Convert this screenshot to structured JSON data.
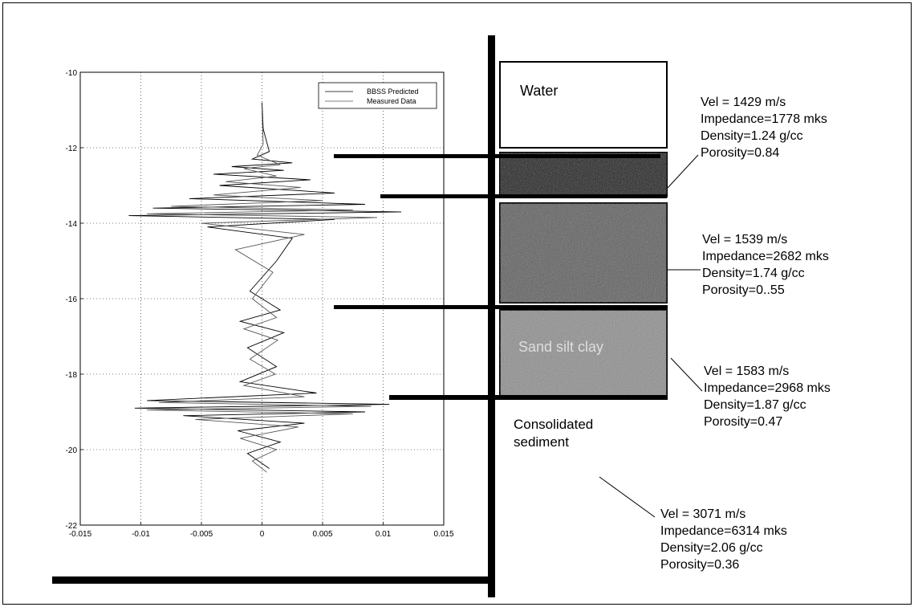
{
  "chart_data": {
    "type": "line",
    "title": "",
    "xlabel": "",
    "ylabel": "",
    "xlim": [
      -0.015,
      0.015
    ],
    "ylim": [
      -22,
      -10
    ],
    "x_ticks": [
      "-0.015",
      "-0.01",
      "-0.005",
      "0",
      "0.005",
      "0.01",
      "0.015"
    ],
    "y_ticks": [
      "-10",
      "-12",
      "-14",
      "-16",
      "-18",
      "-20",
      "-22"
    ],
    "grid": true,
    "legend_position": "top-right",
    "series": [
      {
        "name": "BBSS Predicted",
        "y": [
          -10.8,
          -11.5,
          -12.1,
          -12.3,
          -12.4,
          -12.5,
          -12.6,
          -12.7,
          -12.85,
          -13.0,
          -13.2,
          -13.35,
          -13.5,
          -13.6,
          -13.7,
          -13.8,
          -13.9,
          -14.1,
          -14.4,
          -15.0,
          -15.8,
          -16.3,
          -16.6,
          -16.9,
          -17.3,
          -17.8,
          -18.2,
          -18.5,
          -18.7,
          -18.8,
          -18.9,
          -19.0,
          -19.1,
          -19.3,
          -19.5,
          -19.8,
          -20.1,
          -20.5
        ],
        "values": [
          0.0,
          0.0001,
          0.0006,
          -0.0008,
          0.0025,
          -0.0025,
          0.0018,
          -0.004,
          0.004,
          -0.0035,
          0.006,
          -0.006,
          0.0085,
          -0.009,
          0.0115,
          -0.011,
          0.006,
          -0.0045,
          0.0025,
          0.0012,
          -0.001,
          0.0015,
          -0.0018,
          0.0018,
          -0.0012,
          0.0012,
          -0.0018,
          0.0045,
          -0.0095,
          0.0105,
          -0.0105,
          0.0085,
          -0.0065,
          0.0035,
          -0.002,
          0.0015,
          -0.0012,
          0.0006
        ]
      },
      {
        "name": "Measured Data",
        "y": [
          -11.0,
          -11.9,
          -12.2,
          -12.45,
          -12.55,
          -12.75,
          -12.9,
          -13.05,
          -13.25,
          -13.4,
          -13.55,
          -13.65,
          -13.75,
          -13.85,
          -14.0,
          -14.3,
          -14.7,
          -15.3,
          -16.0,
          -16.5,
          -16.8,
          -17.1,
          -17.6,
          -18.0,
          -18.3,
          -18.6,
          -18.75,
          -18.85,
          -18.95,
          -19.05,
          -19.2,
          -19.4,
          -19.7,
          -20.0,
          -20.3,
          -20.6
        ],
        "values": [
          0.0,
          0.0001,
          -0.0004,
          0.0015,
          -0.0015,
          0.0012,
          -0.003,
          0.0032,
          -0.004,
          0.005,
          -0.0075,
          0.0075,
          -0.0095,
          0.0095,
          -0.005,
          0.0035,
          -0.0022,
          0.0009,
          -0.0008,
          0.0012,
          -0.0015,
          0.0013,
          -0.001,
          0.0011,
          -0.0015,
          0.0035,
          -0.0085,
          0.009,
          -0.0095,
          0.0075,
          -0.0055,
          0.003,
          -0.0018,
          0.0012,
          -0.0008,
          0.0004
        ]
      }
    ]
  },
  "layers": [
    {
      "label": "Water",
      "fill": "#ffffff"
    },
    {
      "label": "",
      "fill": "#1a1a1a"
    },
    {
      "label": "",
      "fill": "#5a5a5a"
    },
    {
      "label": "Sand silt clay",
      "fill": "#8c8c8c"
    }
  ],
  "below_label": [
    "Consolidated",
    "sediment"
  ],
  "annotations": [
    {
      "lines": [
        "Vel = 1429 m/s",
        "Impedance=1778 mks",
        "Density=1.24 g/cc",
        "Porosity=0.84"
      ]
    },
    {
      "lines": [
        "Vel =  1539 m/s",
        "Impedance=2682 mks",
        "Density=1.74 g/cc",
        "Porosity=0..55"
      ]
    },
    {
      "lines": [
        "Vel = 1583 m/s",
        "Impedance=2968 mks",
        "Density=1.87 g/cc",
        "Porosity=0.47"
      ]
    },
    {
      "lines": [
        "Vel = 3071 m/s",
        "Impedance=6314 mks",
        "Density=2.06 g/cc",
        "Porosity=0.36"
      ]
    }
  ]
}
